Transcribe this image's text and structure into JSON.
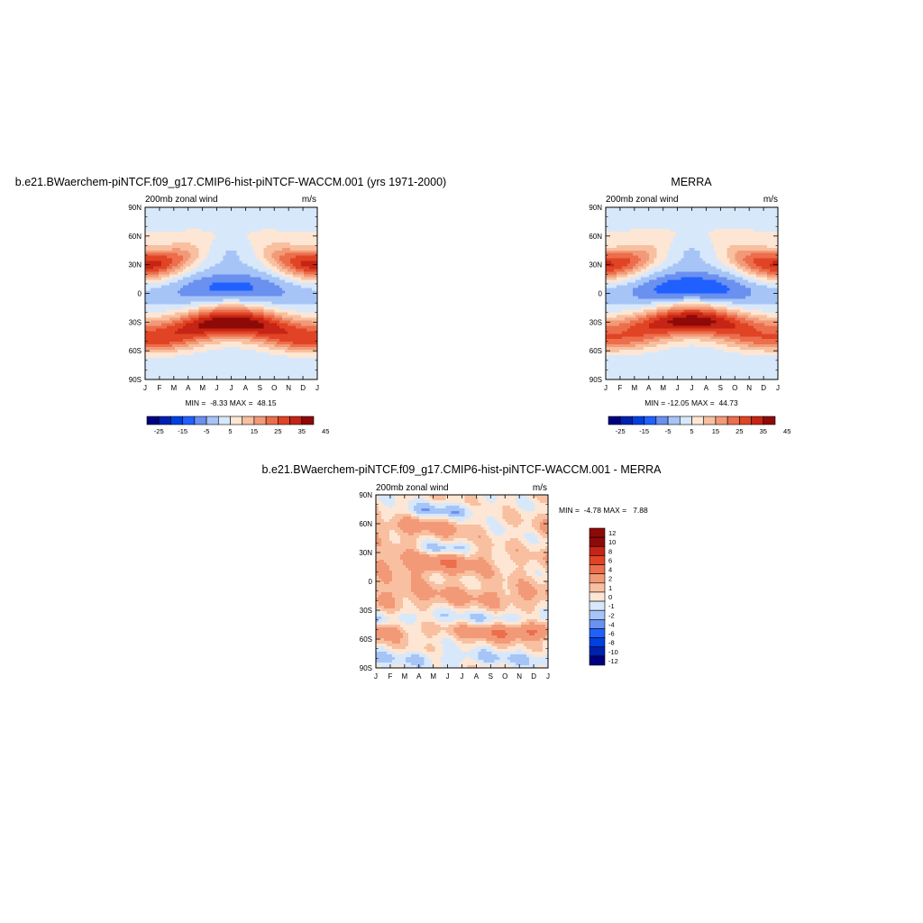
{
  "panels": [
    {
      "title": "b.e21.BWaerchem-piNTCF.f09_g17.CMIP6-hist-piNTCF-WACCM.001 (yrs 1971-2000)",
      "left_label": "200mb zonal wind",
      "right_label": "m/s",
      "min_label": "MIN =",
      "min_value": "-8.33",
      "max_label": "MAX =",
      "max_value": "48.15",
      "stat_text": "MIN =  -8.33 MAX =  48.15"
    },
    {
      "title": "MERRA",
      "left_label": "200mb zonal wind",
      "right_label": "m/s",
      "min_label": "MIN =",
      "min_value": "-12.05",
      "max_label": "MAX =",
      "max_value": "44.73",
      "stat_text": "MIN = -12.05 MAX =  44.73"
    },
    {
      "title": "b.e21.BWaerchem-piNTCF.f09_g17.CMIP6-hist-piNTCF-WACCM.001 - MERRA",
      "left_label": "200mb zonal wind",
      "right_label": "m/s",
      "min_label": "MIN =",
      "min_value": "-4.78",
      "max_label": "MAX =",
      "max_value": "7.88",
      "stat_text": "MIN =  -4.78 MAX =   7.88"
    }
  ],
  "colors": {
    "wind_colorbar": [
      "#00007f",
      "#0020b0",
      "#0040e0",
      "#2060ff",
      "#6a90f0",
      "#a6c4f6",
      "#d8e8fb",
      "#fde6d4",
      "#f8c0a0",
      "#f29a78",
      "#ec6e4c",
      "#e04424",
      "#c62414",
      "#8e0a08"
    ],
    "diff_colorbar": [
      "#00007f",
      "#0020b0",
      "#0040e0",
      "#2060ff",
      "#6a90f0",
      "#a6c4f6",
      "#d8e8fb",
      "#fde6d4",
      "#f8c0a0",
      "#f29a78",
      "#ec6e4c",
      "#e04424",
      "#c62414",
      "#8e0a08"
    ]
  },
  "chart_data": [
    {
      "type": "heatmap",
      "title": "b.e21.BWaerchem-piNTCF.f09_g17.CMIP6-hist-piNTCF-WACCM.001 (yrs 1971-2000)",
      "xlabel": "",
      "ylabel": "",
      "x_ticks": [
        "J",
        "F",
        "M",
        "A",
        "M",
        "J",
        "J",
        "A",
        "S",
        "O",
        "N",
        "D",
        "J"
      ],
      "y_ticks": [
        "90N",
        "60N",
        "30N",
        "0",
        "30S",
        "60S",
        "90S"
      ],
      "colorbar_labels": [
        "-25",
        "-15",
        "-5",
        "5",
        "15",
        "25",
        "35",
        "45"
      ],
      "zmin": -8.33,
      "zmax": 48.15,
      "units": "m/s"
    },
    {
      "type": "heatmap",
      "title": "MERRA",
      "xlabel": "",
      "ylabel": "",
      "x_ticks": [
        "J",
        "F",
        "M",
        "A",
        "M",
        "J",
        "J",
        "A",
        "S",
        "O",
        "N",
        "D",
        "J"
      ],
      "y_ticks": [
        "90N",
        "60N",
        "30N",
        "0",
        "30S",
        "60S",
        "90S"
      ],
      "colorbar_labels": [
        "-25",
        "-15",
        "-5",
        "5",
        "15",
        "25",
        "35",
        "45"
      ],
      "zmin": -12.05,
      "zmax": 44.73,
      "units": "m/s"
    },
    {
      "type": "heatmap",
      "title": "b.e21.BWaerchem-piNTCF.f09_g17.CMIP6-hist-piNTCF-WACCM.001 - MERRA",
      "xlabel": "",
      "ylabel": "",
      "x_ticks": [
        "J",
        "F",
        "M",
        "A",
        "M",
        "J",
        "J",
        "A",
        "S",
        "O",
        "N",
        "D",
        "J"
      ],
      "y_ticks": [
        "90N",
        "60N",
        "30N",
        "0",
        "30S",
        "60S",
        "90S"
      ],
      "colorbar_labels": [
        "12",
        "10",
        "8",
        "6",
        "4",
        "2",
        "1",
        "0",
        "-1",
        "-2",
        "-4",
        "-6",
        "-8",
        "-10",
        "-12"
      ],
      "zmin": -4.78,
      "zmax": 7.88,
      "units": "m/s"
    }
  ]
}
